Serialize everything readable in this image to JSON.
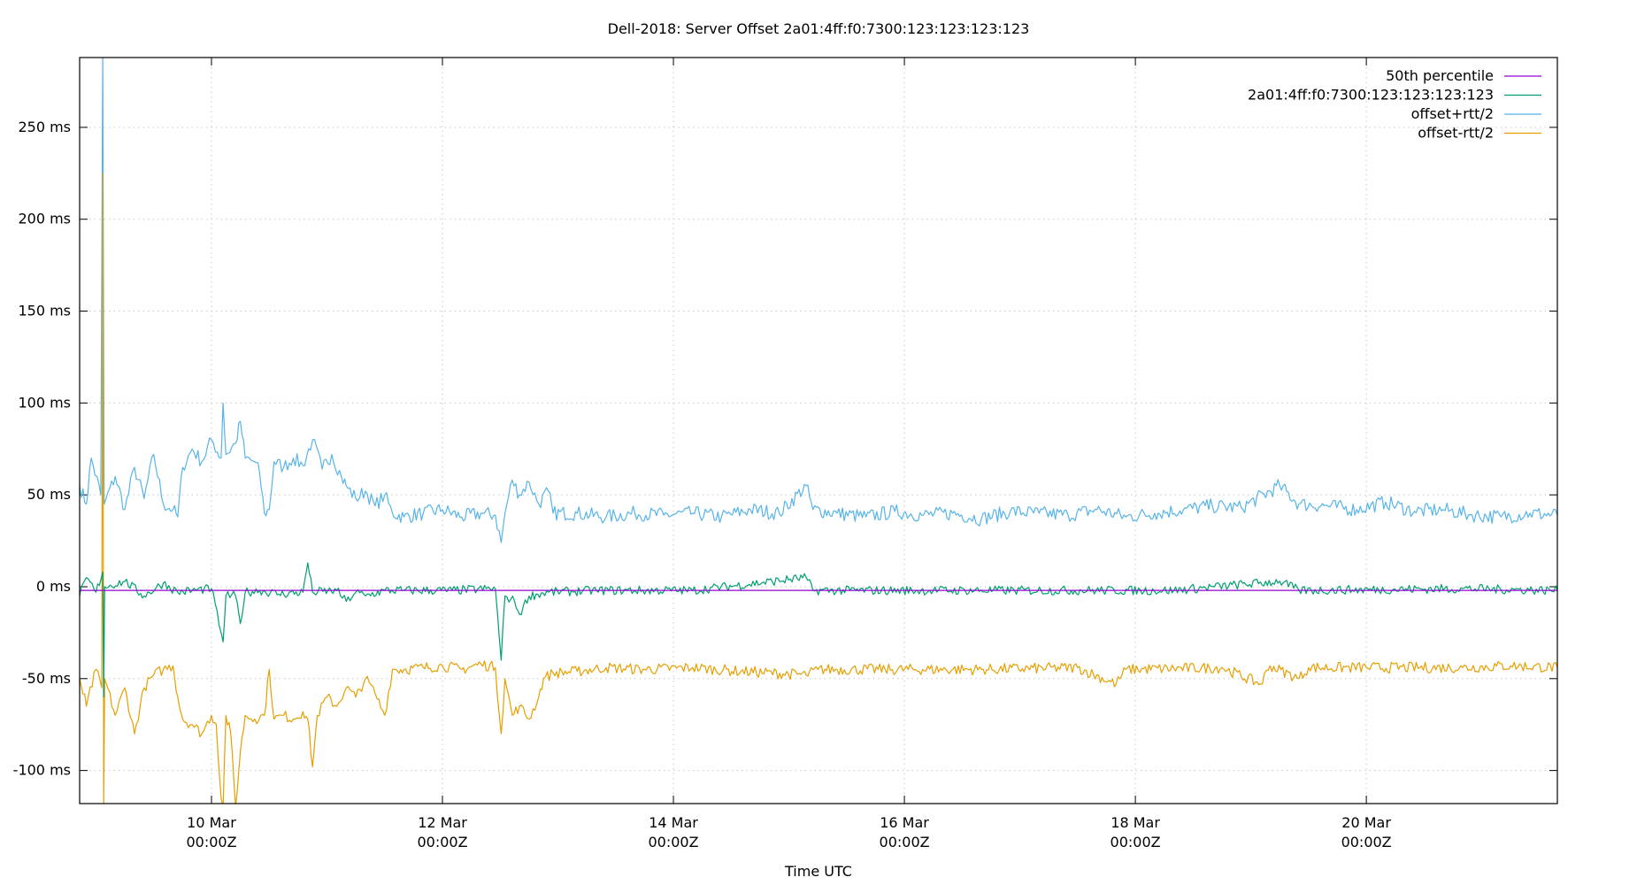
{
  "chart_data": {
    "type": "line",
    "title": "Dell-2018: Server Offset 2a01:4ff:f0:7300:123:123:123:123",
    "xlabel": "Time UTC",
    "ylabel": "",
    "x_units": "hours since 10 Mar 00:00Z",
    "xlim": [
      -27.4,
      279.7
    ],
    "ylim": [
      -118,
      288
    ],
    "grid": true,
    "legend_position": "top-right",
    "x_ticks": [
      {
        "value": 0,
        "label": "10 Mar",
        "sub": "00:00Z"
      },
      {
        "value": 48,
        "label": "12 Mar",
        "sub": "00:00Z"
      },
      {
        "value": 96,
        "label": "14 Mar",
        "sub": "00:00Z"
      },
      {
        "value": 144,
        "label": "16 Mar",
        "sub": "00:00Z"
      },
      {
        "value": 192,
        "label": "18 Mar",
        "sub": "00:00Z"
      },
      {
        "value": 240,
        "label": "20 Mar",
        "sub": "00:00Z"
      }
    ],
    "y_ticks": [
      {
        "value": -100,
        "label": "-100 ms"
      },
      {
        "value": -50,
        "label": "-50 ms"
      },
      {
        "value": 0,
        "label": "0 ms"
      },
      {
        "value": 50,
        "label": "50 ms"
      },
      {
        "value": 100,
        "label": "100 ms"
      },
      {
        "value": 150,
        "label": "150 ms"
      },
      {
        "value": 200,
        "label": "200 ms"
      },
      {
        "value": 250,
        "label": "250 ms"
      }
    ],
    "series": [
      {
        "name": "offset+rtt/2",
        "color": "#56b4e9",
        "jitter": 4,
        "points": [
          [
            -27.4,
            55
          ],
          [
            -26,
            45
          ],
          [
            -25,
            70
          ],
          [
            -23,
            50
          ],
          [
            -22.6,
            290
          ],
          [
            -22.3,
            45
          ],
          [
            -20,
            60
          ],
          [
            -18,
            42
          ],
          [
            -16,
            65
          ],
          [
            -14,
            48
          ],
          [
            -12,
            72
          ],
          [
            -10,
            45
          ],
          [
            -8,
            42
          ],
          [
            -7,
            38
          ],
          [
            -6,
            65
          ],
          [
            -4,
            75
          ],
          [
            -2,
            68
          ],
          [
            0,
            80
          ],
          [
            2,
            70
          ],
          [
            2.4,
            100
          ],
          [
            3,
            72
          ],
          [
            5,
            78
          ],
          [
            6,
            90
          ],
          [
            7,
            70
          ],
          [
            9,
            68
          ],
          [
            10,
            62
          ],
          [
            11,
            40
          ],
          [
            12,
            42
          ],
          [
            13,
            68
          ],
          [
            15,
            65
          ],
          [
            17,
            70
          ],
          [
            19,
            66
          ],
          [
            21,
            80
          ],
          [
            23,
            64
          ],
          [
            25,
            72
          ],
          [
            27,
            60
          ],
          [
            28,
            55
          ],
          [
            30,
            48
          ],
          [
            32,
            52
          ],
          [
            34,
            44
          ],
          [
            36,
            50
          ],
          [
            37.6,
            40
          ],
          [
            40,
            38
          ],
          [
            44,
            40
          ],
          [
            48,
            42
          ],
          [
            52,
            38
          ],
          [
            56,
            40
          ],
          [
            59,
            39
          ],
          [
            60.2,
            24
          ],
          [
            61,
            40
          ],
          [
            62.5,
            58
          ],
          [
            64,
            50
          ],
          [
            66,
            57
          ],
          [
            68,
            45
          ],
          [
            70,
            52
          ],
          [
            71,
            40
          ],
          [
            76,
            40
          ],
          [
            82,
            38
          ],
          [
            88,
            40
          ],
          [
            94,
            39
          ],
          [
            100,
            40
          ],
          [
            106,
            38
          ],
          [
            112,
            42
          ],
          [
            118,
            40
          ],
          [
            123.6,
            55
          ],
          [
            125,
            42
          ],
          [
            130,
            40
          ],
          [
            136,
            38
          ],
          [
            142,
            41
          ],
          [
            148,
            39
          ],
          [
            154,
            40
          ],
          [
            160,
            37
          ],
          [
            166,
            41
          ],
          [
            172,
            40
          ],
          [
            178,
            39
          ],
          [
            184,
            42
          ],
          [
            190,
            38
          ],
          [
            196,
            40
          ],
          [
            202,
            42
          ],
          [
            208,
            44
          ],
          [
            214,
            43
          ],
          [
            222,
            55
          ],
          [
            226,
            45
          ],
          [
            232,
            44
          ],
          [
            238,
            42
          ],
          [
            244,
            46
          ],
          [
            250,
            41
          ],
          [
            256,
            42
          ],
          [
            262,
            39
          ],
          [
            268,
            38
          ],
          [
            274,
            40
          ],
          [
            279.7,
            39
          ]
        ]
      },
      {
        "name": "offset-rtt/2",
        "color": "#e69f00",
        "jitter": 3,
        "points": [
          [
            -27.4,
            -50
          ],
          [
            -26,
            -65
          ],
          [
            -24,
            -45
          ],
          [
            -22.8,
            -55
          ],
          [
            -22.6,
            225
          ],
          [
            -22.4,
            -120
          ],
          [
            -22.2,
            -50
          ],
          [
            -20,
            -70
          ],
          [
            -18,
            -55
          ],
          [
            -16,
            -80
          ],
          [
            -14,
            -55
          ],
          [
            -12,
            -48
          ],
          [
            -10,
            -45
          ],
          [
            -8,
            -43
          ],
          [
            -7,
            -60
          ],
          [
            -6,
            -72
          ],
          [
            -4,
            -75
          ],
          [
            -2,
            -80
          ],
          [
            0,
            -70
          ],
          [
            1,
            -75
          ],
          [
            2,
            -115
          ],
          [
            2.4,
            -120
          ],
          [
            3,
            -70
          ],
          [
            4,
            -80
          ],
          [
            5,
            -120
          ],
          [
            6,
            -90
          ],
          [
            7,
            -70
          ],
          [
            9,
            -72
          ],
          [
            11,
            -70
          ],
          [
            12,
            -45
          ],
          [
            13,
            -72
          ],
          [
            15,
            -70
          ],
          [
            17,
            -72
          ],
          [
            19,
            -68
          ],
          [
            20,
            -72
          ],
          [
            21,
            -98
          ],
          [
            22,
            -70
          ],
          [
            24,
            -60
          ],
          [
            26,
            -65
          ],
          [
            28,
            -55
          ],
          [
            30,
            -60
          ],
          [
            32,
            -50
          ],
          [
            34,
            -58
          ],
          [
            36,
            -70
          ],
          [
            37.6,
            -45
          ],
          [
            40,
            -45
          ],
          [
            44,
            -44
          ],
          [
            48,
            -43
          ],
          [
            52,
            -45
          ],
          [
            56,
            -42
          ],
          [
            59,
            -44
          ],
          [
            60.2,
            -80
          ],
          [
            61,
            -50
          ],
          [
            62.5,
            -70
          ],
          [
            64,
            -65
          ],
          [
            66,
            -72
          ],
          [
            68,
            -60
          ],
          [
            69,
            -50
          ],
          [
            71,
            -47
          ],
          [
            76,
            -46
          ],
          [
            82,
            -44
          ],
          [
            90,
            -45
          ],
          [
            100,
            -44
          ],
          [
            110,
            -46
          ],
          [
            123.6,
            -48
          ],
          [
            126,
            -45
          ],
          [
            140,
            -45
          ],
          [
            160,
            -45
          ],
          [
            180,
            -44
          ],
          [
            188,
            -53
          ],
          [
            190,
            -45
          ],
          [
            210,
            -44
          ],
          [
            218,
            -53
          ],
          [
            220,
            -43
          ],
          [
            226,
            -50
          ],
          [
            228,
            -44
          ],
          [
            240,
            -44
          ],
          [
            260,
            -44
          ],
          [
            270,
            -43
          ],
          [
            279.7,
            -44
          ]
        ]
      },
      {
        "name": "2a01:4ff:f0:7300:123:123:123:123",
        "color": "#009e73",
        "jitter": 2.5,
        "points": [
          [
            -27.4,
            -5
          ],
          [
            -26,
            5
          ],
          [
            -24,
            -3
          ],
          [
            -22.6,
            8
          ],
          [
            -22.4,
            -60
          ],
          [
            -22.2,
            0
          ],
          [
            -18,
            3
          ],
          [
            -14,
            -5
          ],
          [
            -10,
            2
          ],
          [
            -7,
            -3
          ],
          [
            -4,
            -2
          ],
          [
            0,
            -1
          ],
          [
            2,
            -25
          ],
          [
            2.4,
            -30
          ],
          [
            3,
            -5
          ],
          [
            5,
            -5
          ],
          [
            6,
            -20
          ],
          [
            7,
            -3
          ],
          [
            10,
            -2
          ],
          [
            14,
            -4
          ],
          [
            19,
            -3
          ],
          [
            20,
            13
          ],
          [
            21,
            -3
          ],
          [
            26,
            -2
          ],
          [
            28,
            -8
          ],
          [
            30,
            -3
          ],
          [
            32,
            -5
          ],
          [
            36,
            -2
          ],
          [
            40,
            -2
          ],
          [
            50,
            -2
          ],
          [
            59,
            -1
          ],
          [
            60.2,
            -40
          ],
          [
            61,
            -5
          ],
          [
            63,
            -8
          ],
          [
            64,
            -15
          ],
          [
            66,
            -5
          ],
          [
            70,
            -3
          ],
          [
            80,
            -2
          ],
          [
            100,
            -2
          ],
          [
            123.6,
            5
          ],
          [
            125,
            -2
          ],
          [
            150,
            -2
          ],
          [
            200,
            -2
          ],
          [
            222,
            3
          ],
          [
            226,
            -2
          ],
          [
            260,
            -1
          ],
          [
            279.7,
            -2
          ]
        ]
      },
      {
        "name": "50th percentile",
        "color": "#9400d3",
        "jitter": 0,
        "points": [
          [
            -27.4,
            -2
          ],
          [
            279.7,
            -2
          ]
        ]
      }
    ],
    "legend_order": [
      "50th percentile",
      "2a01:4ff:f0:7300:123:123:123:123",
      "offset+rtt/2",
      "offset-rtt/2"
    ]
  }
}
